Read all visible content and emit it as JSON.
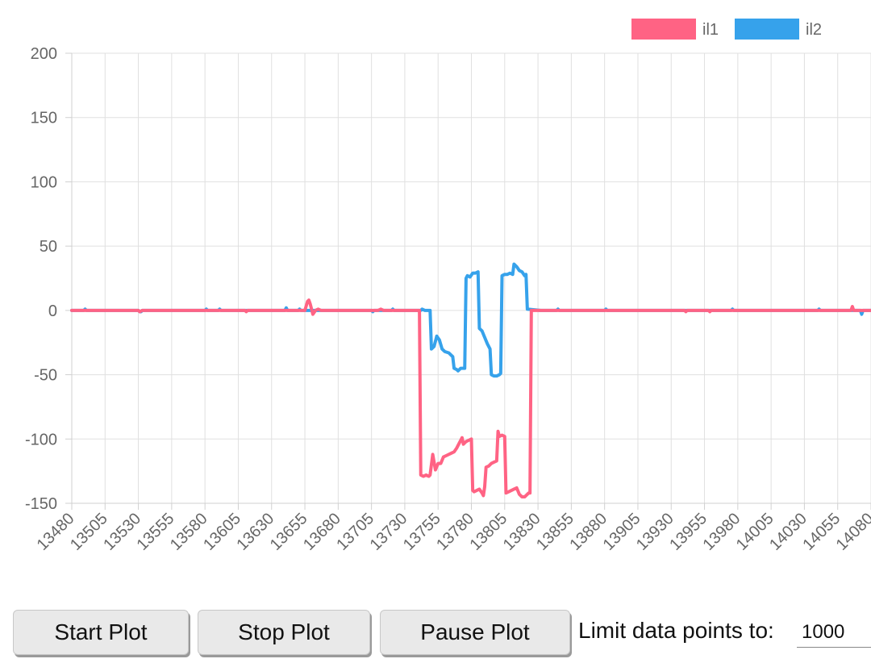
{
  "chart_data": {
    "type": "line",
    "title": "",
    "xlabel": "",
    "ylabel": "",
    "xlim": [
      13480,
      14080
    ],
    "ylim": [
      -150,
      200
    ],
    "yticks": [
      200,
      150,
      100,
      50,
      0,
      -50,
      -100,
      -150
    ],
    "xticks": [
      13480,
      13505,
      13530,
      13555,
      13580,
      13605,
      13630,
      13655,
      13680,
      13705,
      13730,
      13755,
      13780,
      13805,
      13830,
      13855,
      13880,
      13905,
      13930,
      13955,
      13980,
      14005,
      14030,
      14055,
      14080
    ],
    "grid": true,
    "legend_position": "top-right",
    "series": [
      {
        "name": "il1",
        "color": "#ff6384",
        "points": [
          [
            13480,
            0
          ],
          [
            13530,
            0
          ],
          [
            13531,
            -1
          ],
          [
            13533,
            0
          ],
          [
            13610,
            0
          ],
          [
            13611,
            -1
          ],
          [
            13612,
            0
          ],
          [
            13655,
            0
          ],
          [
            13657,
            7
          ],
          [
            13658,
            8
          ],
          [
            13659,
            5
          ],
          [
            13661,
            -3
          ],
          [
            13663,
            0
          ],
          [
            13665,
            1
          ],
          [
            13667,
            0
          ],
          [
            13710,
            0
          ],
          [
            13712,
            1
          ],
          [
            13714,
            0
          ],
          [
            13741,
            0
          ],
          [
            13742,
            -128
          ],
          [
            13744,
            -129
          ],
          [
            13746,
            -128
          ],
          [
            13748,
            -129
          ],
          [
            13749,
            -128
          ],
          [
            13751,
            -112
          ],
          [
            13753,
            -124
          ],
          [
            13755,
            -119
          ],
          [
            13757,
            -119
          ],
          [
            13759,
            -114
          ],
          [
            13761,
            -113
          ],
          [
            13765,
            -111
          ],
          [
            13767,
            -110
          ],
          [
            13769,
            -107
          ],
          [
            13771,
            -103
          ],
          [
            13772,
            -101
          ],
          [
            13773,
            -99
          ],
          [
            13774,
            -104
          ],
          [
            13776,
            -102
          ],
          [
            13778,
            -101
          ],
          [
            13780,
            -100
          ],
          [
            13781,
            -140
          ],
          [
            13782,
            -141
          ],
          [
            13784,
            -140
          ],
          [
            13786,
            -139
          ],
          [
            13788,
            -142
          ],
          [
            13789,
            -144
          ],
          [
            13790,
            -137
          ],
          [
            13791,
            -122
          ],
          [
            13793,
            -121
          ],
          [
            13795,
            -119
          ],
          [
            13797,
            -118
          ],
          [
            13799,
            -117
          ],
          [
            13800,
            -94
          ],
          [
            13801,
            -98
          ],
          [
            13803,
            -97
          ],
          [
            13805,
            -98
          ],
          [
            13806,
            -142
          ],
          [
            13808,
            -141
          ],
          [
            13810,
            -140
          ],
          [
            13812,
            -139
          ],
          [
            13814,
            -138
          ],
          [
            13816,
            -143
          ],
          [
            13818,
            -145
          ],
          [
            13820,
            -145
          ],
          [
            13822,
            -143
          ],
          [
            13823,
            -142
          ],
          [
            13824,
            -142
          ],
          [
            13825,
            0
          ],
          [
            13860,
            0
          ],
          [
            13940,
            0
          ],
          [
            13941,
            -1
          ],
          [
            13942,
            0
          ],
          [
            13958,
            0
          ],
          [
            13959,
            -1
          ],
          [
            13960,
            0
          ],
          [
            14065,
            0
          ],
          [
            14066,
            3
          ],
          [
            14067,
            0
          ],
          [
            14080,
            0
          ]
        ]
      },
      {
        "name": "il2",
        "color": "#36a2eb",
        "points": [
          [
            13480,
            0
          ],
          [
            13489,
            0
          ],
          [
            13490,
            1
          ],
          [
            13491,
            0
          ],
          [
            13530,
            0
          ],
          [
            13531,
            -1
          ],
          [
            13532,
            -1
          ],
          [
            13533,
            0
          ],
          [
            13580,
            0
          ],
          [
            13581,
            1
          ],
          [
            13582,
            0
          ],
          [
            13590,
            0
          ],
          [
            13591,
            1
          ],
          [
            13592,
            0
          ],
          [
            13640,
            0
          ],
          [
            13641,
            2
          ],
          [
            13642,
            0
          ],
          [
            13650,
            0
          ],
          [
            13651,
            1
          ],
          [
            13652,
            0
          ],
          [
            13705,
            0
          ],
          [
            13706,
            -1
          ],
          [
            13707,
            0
          ],
          [
            13720,
            0
          ],
          [
            13721,
            1
          ],
          [
            13722,
            0
          ],
          [
            13742,
            0
          ],
          [
            13743,
            1
          ],
          [
            13745,
            0
          ],
          [
            13748,
            0
          ],
          [
            13749,
            0
          ],
          [
            13750,
            -30
          ],
          [
            13752,
            -28
          ],
          [
            13754,
            -20
          ],
          [
            13756,
            -23
          ],
          [
            13758,
            -30
          ],
          [
            13760,
            -32
          ],
          [
            13763,
            -33
          ],
          [
            13766,
            -36
          ],
          [
            13767,
            -45
          ],
          [
            13769,
            -46
          ],
          [
            13770,
            -47
          ],
          [
            13772,
            -45
          ],
          [
            13774,
            -45
          ],
          [
            13775,
            -45
          ],
          [
            13776,
            25
          ],
          [
            13777,
            27
          ],
          [
            13779,
            26
          ],
          [
            13781,
            29
          ],
          [
            13783,
            29
          ],
          [
            13785,
            30
          ],
          [
            13786,
            -14
          ],
          [
            13788,
            -16
          ],
          [
            13790,
            -21
          ],
          [
            13792,
            -26
          ],
          [
            13794,
            -30
          ],
          [
            13795,
            -50
          ],
          [
            13797,
            -51
          ],
          [
            13799,
            -51
          ],
          [
            13801,
            -50
          ],
          [
            13802,
            -49
          ],
          [
            13803,
            27
          ],
          [
            13805,
            28
          ],
          [
            13807,
            28
          ],
          [
            13809,
            29
          ],
          [
            13811,
            28
          ],
          [
            13812,
            36
          ],
          [
            13814,
            34
          ],
          [
            13816,
            31
          ],
          [
            13818,
            30
          ],
          [
            13820,
            27
          ],
          [
            13821,
            28
          ],
          [
            13822,
            1
          ],
          [
            13832,
            0
          ],
          [
            13844,
            0
          ],
          [
            13845,
            1
          ],
          [
            13846,
            0
          ],
          [
            13880,
            0
          ],
          [
            13881,
            1
          ],
          [
            13882,
            0
          ],
          [
            13975,
            0
          ],
          [
            13976,
            1
          ],
          [
            13977,
            0
          ],
          [
            14040,
            0
          ],
          [
            14041,
            1
          ],
          [
            14042,
            0
          ],
          [
            14072,
            0
          ],
          [
            14073,
            -3
          ],
          [
            14074,
            0
          ],
          [
            14080,
            0
          ]
        ]
      }
    ]
  },
  "controls": {
    "start_label": "Start Plot",
    "stop_label": "Stop Plot",
    "pause_label": "Pause Plot",
    "limit_label": "Limit data points to:",
    "limit_value": "1000"
  }
}
